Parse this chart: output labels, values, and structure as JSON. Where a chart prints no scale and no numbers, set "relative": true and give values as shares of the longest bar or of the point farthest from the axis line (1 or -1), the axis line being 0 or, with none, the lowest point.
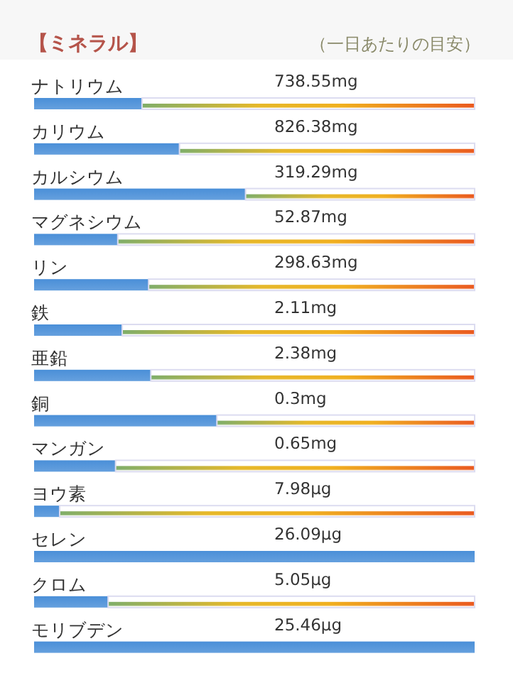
{
  "chart_data": {
    "type": "bar",
    "orientation": "horizontal",
    "relative": true,
    "stacked": true,
    "title": "【ミネラル】",
    "subtitle": "（一日あたりの目安）",
    "categories": [
      "ナトリウム",
      "カリウム",
      "カルシウム",
      "マグネシウム",
      "リン",
      "鉄",
      "亜鉛",
      "銅",
      "マンガン",
      "ヨウ素",
      "セレン",
      "クロム",
      "モリブデン"
    ],
    "series": [
      {
        "color": "#4a8fd8",
        "values": [
          0.245,
          0.33,
          0.48,
          0.19,
          0.26,
          0.2,
          0.265,
          0.415,
          0.185,
          0.058,
          1,
          0.168,
          1
        ]
      },
      {
        "color": "#dcdcf0",
        "values": [
          0.755,
          0.67,
          0.52,
          0.81,
          0.74,
          0.8,
          0.735,
          0.585,
          0.815,
          0.942,
          0,
          0.832,
          0
        ]
      }
    ],
    "annotations": [
      "738.55mg",
      "826.38mg",
      "319.29mg",
      "52.87mg",
      "298.63mg",
      "2.11mg",
      "2.38mg",
      "0.3mg",
      "0.65mg",
      "7.98μg",
      "26.09μg",
      "5.05μg",
      "25.46μg"
    ]
  }
}
